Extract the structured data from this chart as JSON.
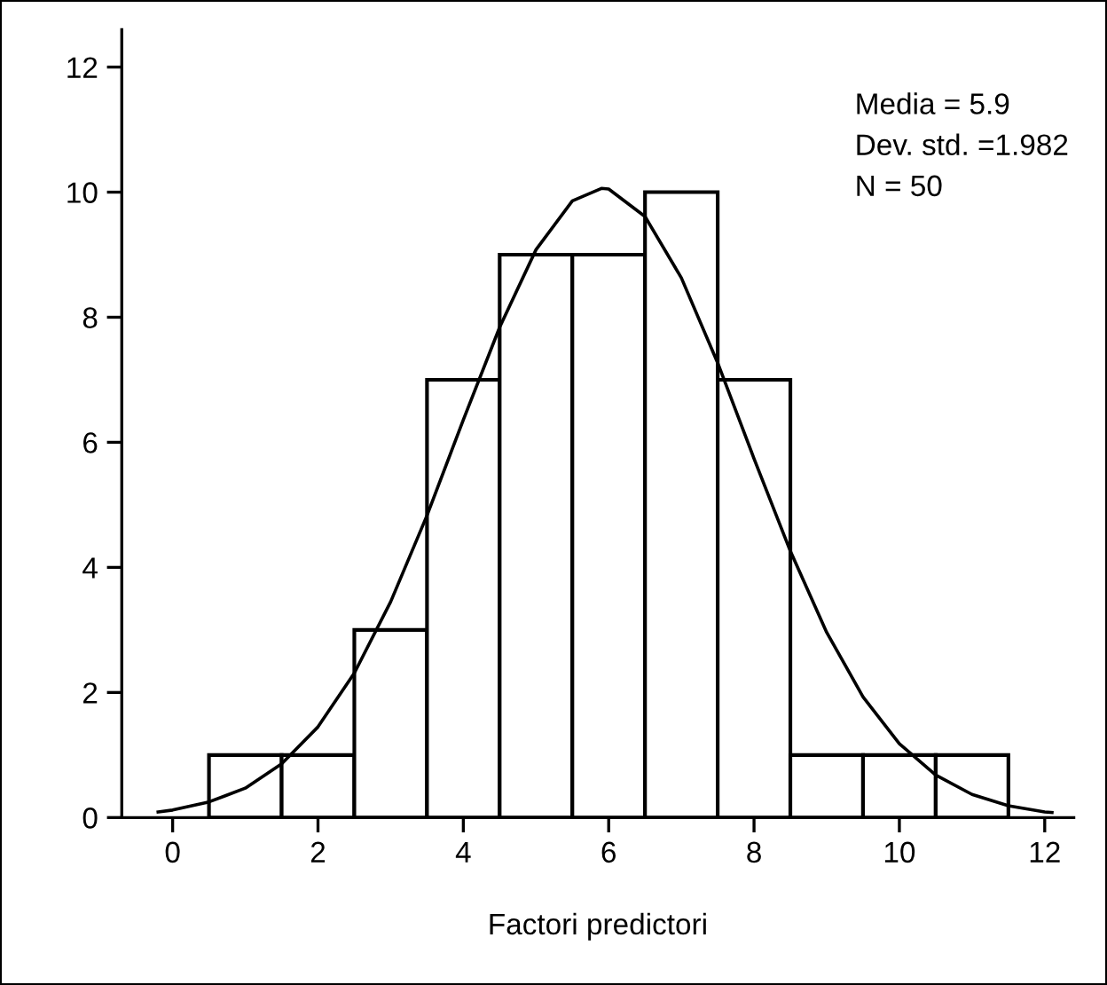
{
  "chart_data": {
    "type": "histogram",
    "xlabel": "Factori predictori",
    "series": [
      {
        "type": "histogram",
        "bins": [
          0.5,
          1.5,
          2.5,
          3.5,
          4.5,
          5.5,
          6.5,
          7.5,
          8.5,
          9.5,
          10.5,
          11.5
        ],
        "values": [
          1,
          1,
          3,
          7,
          9,
          9,
          10,
          7,
          1,
          1,
          1
        ],
        "color": "#ffffff"
      },
      {
        "type": "line",
        "x": [
          -0.2,
          0,
          0.5,
          1,
          1.5,
          2,
          2.5,
          3,
          3.5,
          4,
          4.5,
          5,
          5.5,
          5.9,
          6,
          6.5,
          7,
          7.5,
          8,
          8.5,
          9,
          9.5,
          10,
          10.5,
          11,
          11.5,
          12,
          12.1
        ],
        "values": [
          0.09,
          0.12,
          0.25,
          0.47,
          0.86,
          1.45,
          2.31,
          3.45,
          4.83,
          6.36,
          7.84,
          9.08,
          9.86,
          10.06,
          10.05,
          9.61,
          8.63,
          7.27,
          5.74,
          4.26,
          2.96,
          1.93,
          1.18,
          0.68,
          0.37,
          0.19,
          0.09,
          0.08
        ],
        "color": "#000000"
      }
    ],
    "annotations": [
      "Media = 5.9",
      "Dev. std. =1.982",
      "N = 50"
    ],
    "xlim": [
      -0.7,
      12.4
    ],
    "ylim": [
      0,
      12.6
    ],
    "xticks": [
      0,
      2,
      4,
      6,
      8,
      10,
      12
    ],
    "yticks": [
      0,
      2,
      4,
      6,
      8,
      10,
      12
    ],
    "grid": false,
    "legend": false
  }
}
